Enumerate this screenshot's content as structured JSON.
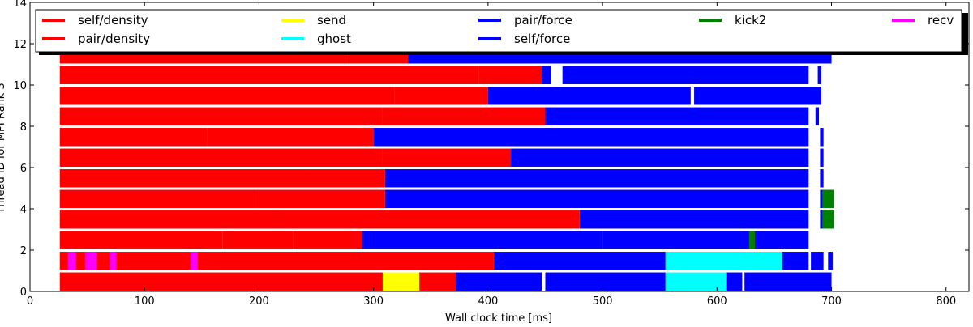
{
  "chart_data": {
    "type": "bar",
    "xlabel": "Wall clock time [ms]",
    "ylabel": "Thread ID for MPI Rank 3",
    "xlim": [
      0,
      820
    ],
    "ylim": [
      0,
      14
    ],
    "xticks": [
      0,
      100,
      200,
      300,
      400,
      500,
      600,
      700,
      800
    ],
    "yticks": [
      0,
      2,
      4,
      6,
      8,
      10,
      12,
      14
    ],
    "grid": false,
    "legend_position": "top",
    "legend": [
      {
        "name": "self/density",
        "color": "#ff0000"
      },
      {
        "name": "pair/density",
        "color": "#ff0000"
      },
      {
        "name": "send",
        "color": "#ffff00"
      },
      {
        "name": "ghost",
        "color": "#00ffff"
      },
      {
        "name": "pair/force",
        "color": "#0000ff"
      },
      {
        "name": "self/force",
        "color": "#0000ff"
      },
      {
        "name": "kick2",
        "color": "#008000"
      },
      {
        "name": "recv",
        "color": "#ff00ff"
      }
    ],
    "threads": [
      {
        "thread": 0,
        "segments": [
          {
            "start": 26,
            "end": 308,
            "task": "self/density"
          },
          {
            "start": 308,
            "end": 340,
            "task": "send"
          },
          {
            "start": 340,
            "end": 372,
            "task": "pair/density"
          },
          {
            "start": 372,
            "end": 447,
            "task": "pair/force"
          },
          {
            "start": 450,
            "end": 555,
            "task": "pair/force"
          },
          {
            "start": 555,
            "end": 608,
            "task": "ghost"
          },
          {
            "start": 608,
            "end": 622,
            "task": "self/force"
          },
          {
            "start": 624,
            "end": 700,
            "task": "pair/force"
          }
        ]
      },
      {
        "thread": 1,
        "segments": [
          {
            "start": 26,
            "end": 145,
            "task": "self/density"
          },
          {
            "start": 33,
            "end": 40,
            "task": "recv"
          },
          {
            "start": 48,
            "end": 58,
            "task": "recv"
          },
          {
            "start": 70,
            "end": 75,
            "task": "recv"
          },
          {
            "start": 140,
            "end": 146,
            "task": "recv"
          },
          {
            "start": 146,
            "end": 405,
            "task": "pair/density"
          },
          {
            "start": 405,
            "end": 555,
            "task": "pair/force"
          },
          {
            "start": 555,
            "end": 657,
            "task": "ghost"
          },
          {
            "start": 657,
            "end": 680,
            "task": "pair/force"
          },
          {
            "start": 682,
            "end": 693,
            "task": "self/force"
          },
          {
            "start": 697,
            "end": 701,
            "task": "pair/force"
          }
        ]
      },
      {
        "thread": 2,
        "segments": [
          {
            "start": 26,
            "end": 168,
            "task": "self/density"
          },
          {
            "start": 168,
            "end": 230,
            "task": "pair/density"
          },
          {
            "start": 230,
            "end": 290,
            "task": "pair/density"
          },
          {
            "start": 290,
            "end": 500,
            "task": "pair/force"
          },
          {
            "start": 500,
            "end": 680,
            "task": "self/force"
          },
          {
            "start": 628,
            "end": 633,
            "task": "kick2"
          }
        ]
      },
      {
        "thread": 3,
        "segments": [
          {
            "start": 26,
            "end": 222,
            "task": "self/density"
          },
          {
            "start": 222,
            "end": 480,
            "task": "pair/density"
          },
          {
            "start": 480,
            "end": 680,
            "task": "pair/force"
          },
          {
            "start": 690,
            "end": 693,
            "task": "pair/force"
          },
          {
            "start": 692,
            "end": 702,
            "task": "kick2"
          }
        ]
      },
      {
        "thread": 4,
        "segments": [
          {
            "start": 26,
            "end": 200,
            "task": "self/density"
          },
          {
            "start": 200,
            "end": 310,
            "task": "pair/density"
          },
          {
            "start": 310,
            "end": 680,
            "task": "pair/force"
          },
          {
            "start": 690,
            "end": 693,
            "task": "pair/force"
          },
          {
            "start": 692,
            "end": 702,
            "task": "kick2"
          }
        ]
      },
      {
        "thread": 5,
        "segments": [
          {
            "start": 26,
            "end": 245,
            "task": "self/density"
          },
          {
            "start": 245,
            "end": 310,
            "task": "pair/density"
          },
          {
            "start": 310,
            "end": 680,
            "task": "self/force"
          },
          {
            "start": 690,
            "end": 693,
            "task": "pair/force"
          }
        ]
      },
      {
        "thread": 6,
        "segments": [
          {
            "start": 26,
            "end": 308,
            "task": "self/density"
          },
          {
            "start": 308,
            "end": 420,
            "task": "pair/density"
          },
          {
            "start": 420,
            "end": 680,
            "task": "pair/force"
          },
          {
            "start": 690,
            "end": 693,
            "task": "pair/force"
          }
        ]
      },
      {
        "thread": 7,
        "segments": [
          {
            "start": 26,
            "end": 155,
            "task": "self/density"
          },
          {
            "start": 155,
            "end": 300,
            "task": "pair/density"
          },
          {
            "start": 300,
            "end": 680,
            "task": "pair/force"
          },
          {
            "start": 690,
            "end": 693,
            "task": "pair/force"
          }
        ]
      },
      {
        "thread": 8,
        "segments": [
          {
            "start": 26,
            "end": 308,
            "task": "self/density"
          },
          {
            "start": 308,
            "end": 450,
            "task": "pair/density"
          },
          {
            "start": 450,
            "end": 680,
            "task": "pair/force"
          },
          {
            "start": 686,
            "end": 689,
            "task": "pair/force"
          }
        ]
      },
      {
        "thread": 9,
        "segments": [
          {
            "start": 26,
            "end": 318,
            "task": "self/density"
          },
          {
            "start": 318,
            "end": 400,
            "task": "pair/density"
          },
          {
            "start": 400,
            "end": 577,
            "task": "pair/force"
          },
          {
            "start": 580,
            "end": 691,
            "task": "pair/force"
          }
        ]
      },
      {
        "thread": 10,
        "segments": [
          {
            "start": 26,
            "end": 392,
            "task": "self/density"
          },
          {
            "start": 392,
            "end": 455,
            "task": "pair/density"
          },
          {
            "start": 455,
            "end": 447,
            "task": "pair/force"
          },
          {
            "start": 465,
            "end": 680,
            "task": "pair/force"
          },
          {
            "start": 688,
            "end": 691,
            "task": "pair/force"
          }
        ]
      },
      {
        "thread": 11,
        "segments": [
          {
            "start": 26,
            "end": 275,
            "task": "self/density"
          },
          {
            "start": 275,
            "end": 330,
            "task": "pair/density"
          },
          {
            "start": 330,
            "end": 700,
            "task": "pair/force"
          }
        ]
      }
    ]
  }
}
